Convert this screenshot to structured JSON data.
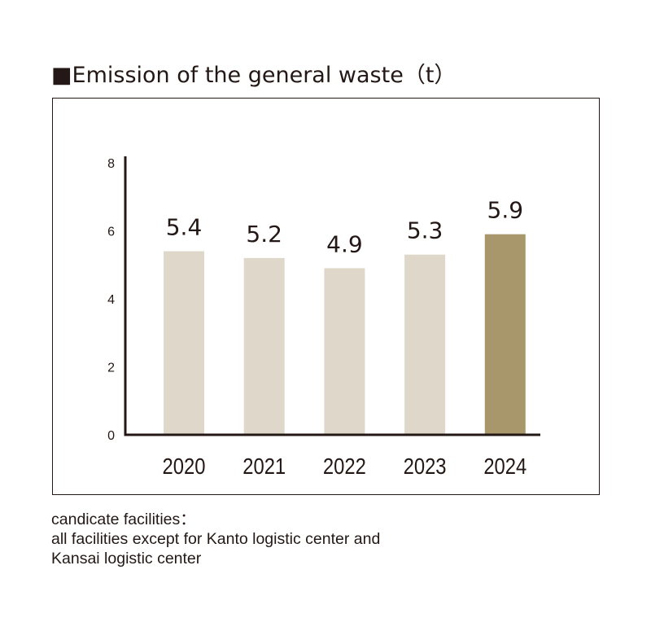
{
  "chart_data": {
    "type": "bar",
    "title": "■Emission of the general waste（t）",
    "categories": [
      "2020",
      "2021",
      "2022",
      "2023",
      "2024"
    ],
    "values": [
      5.4,
      5.2,
      4.9,
      5.3,
      5.9
    ],
    "data_labels": [
      "5.4",
      "5.2",
      "4.9",
      "5.3",
      "5.9"
    ],
    "xlabel": "",
    "ylabel": "",
    "ylim": [
      0,
      8
    ],
    "yticks": [
      0,
      2,
      4,
      6,
      8
    ],
    "grid": false,
    "colors": {
      "default": "#dfd7ca",
      "highlight": "#a8976b",
      "axis": "#231815"
    },
    "highlight_index": 4
  },
  "notes": [
    "candicate facilities：",
    "all facilities except for Kanto logistic center and",
    "Kansai logistic center"
  ]
}
